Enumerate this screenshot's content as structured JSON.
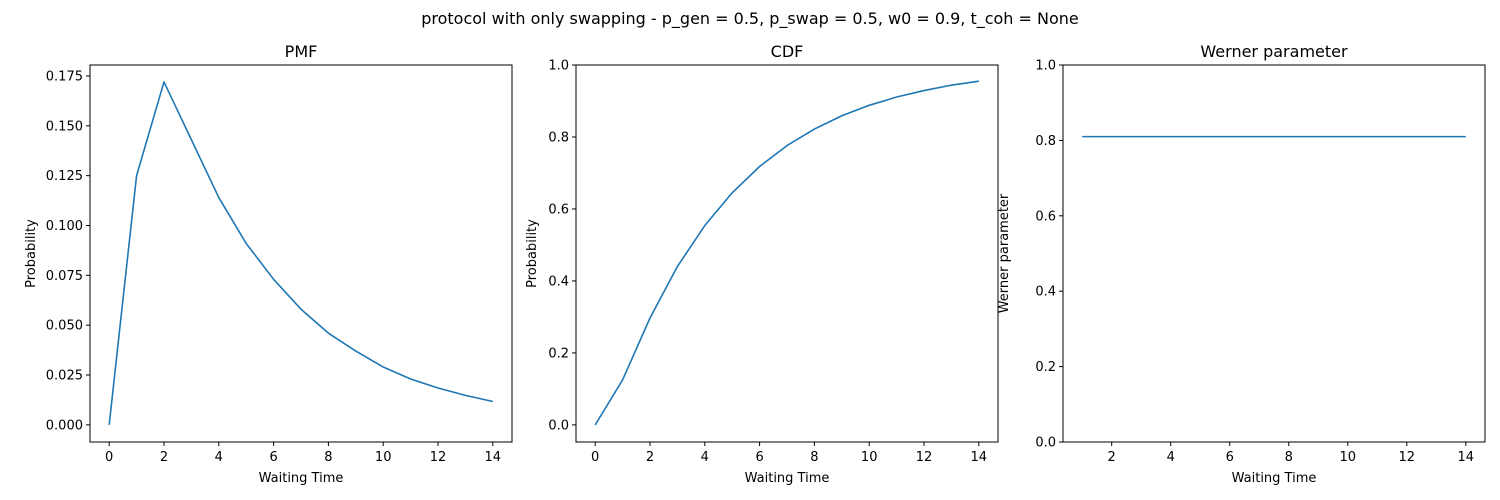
{
  "figure": {
    "suptitle": "protocol with only swapping - p_gen = 0.5, p_swap = 0.5, w0 = 0.9, t_coh = None"
  },
  "colors": {
    "line": "#1f77b4",
    "axes": "#000000"
  },
  "chart_data": [
    {
      "type": "line",
      "title": "PMF",
      "xlabel": "Waiting Time",
      "ylabel": "Probability",
      "xlim": [
        -0.7,
        14.7
      ],
      "ylim": [
        -0.0086,
        0.1805
      ],
      "xticks": [
        0,
        2,
        4,
        6,
        8,
        10,
        12,
        14
      ],
      "xtick_labels": [
        "0",
        "2",
        "4",
        "6",
        "8",
        "10",
        "12",
        "14"
      ],
      "yticks": [
        0,
        0.025,
        0.05,
        0.075,
        0.1,
        0.125,
        0.15,
        0.175
      ],
      "ytick_labels": [
        "0.000",
        "0.025",
        "0.050",
        "0.075",
        "0.100",
        "0.125",
        "0.150",
        "0.175"
      ],
      "grid": false,
      "series": [
        {
          "x": [
            0,
            1,
            2,
            3,
            4,
            5,
            6,
            7,
            8,
            9,
            10,
            11,
            12,
            13,
            14
          ],
          "y": [
            0.0,
            0.125,
            0.172,
            0.143,
            0.114,
            0.091,
            0.073,
            0.058,
            0.046,
            0.037,
            0.029,
            0.023,
            0.0185,
            0.0148,
            0.0117
          ]
        }
      ]
    },
    {
      "type": "line",
      "title": "CDF",
      "xlabel": "Waiting Time",
      "ylabel": "Probability",
      "xlim": [
        -0.7,
        14.7
      ],
      "ylim": [
        -0.0475,
        1.0
      ],
      "xticks": [
        0,
        2,
        4,
        6,
        8,
        10,
        12,
        14
      ],
      "xtick_labels": [
        "0",
        "2",
        "4",
        "6",
        "8",
        "10",
        "12",
        "14"
      ],
      "yticks": [
        0,
        0.2,
        0.4,
        0.6,
        0.8,
        1.0
      ],
      "ytick_labels": [
        "0.0",
        "0.2",
        "0.4",
        "0.6",
        "0.8",
        "1.0"
      ],
      "grid": false,
      "series": [
        {
          "x": [
            0,
            1,
            2,
            3,
            4,
            5,
            6,
            7,
            8,
            9,
            10,
            11,
            12,
            13,
            14
          ],
          "y": [
            0.0,
            0.125,
            0.297,
            0.44,
            0.554,
            0.645,
            0.718,
            0.776,
            0.822,
            0.859,
            0.888,
            0.911,
            0.929,
            0.944,
            0.955
          ]
        }
      ]
    },
    {
      "type": "line",
      "title": "Werner parameter",
      "xlabel": "Waiting Time",
      "ylabel": "Werner parameter",
      "xlim": [
        0.35,
        14.65
      ],
      "ylim": [
        0,
        1
      ],
      "xticks": [
        2,
        4,
        6,
        8,
        10,
        12,
        14
      ],
      "xtick_labels": [
        "2",
        "4",
        "6",
        "8",
        "10",
        "12",
        "14"
      ],
      "yticks": [
        0,
        0.2,
        0.4,
        0.6,
        0.8,
        1.0
      ],
      "ytick_labels": [
        "0.0",
        "0.2",
        "0.4",
        "0.6",
        "0.8",
        "1.0"
      ],
      "grid": false,
      "series": [
        {
          "x": [
            1,
            2,
            3,
            4,
            5,
            6,
            7,
            8,
            9,
            10,
            11,
            12,
            13,
            14
          ],
          "y": [
            0.81,
            0.81,
            0.81,
            0.81,
            0.81,
            0.81,
            0.81,
            0.81,
            0.81,
            0.81,
            0.81,
            0.81,
            0.81,
            0.81
          ]
        }
      ]
    }
  ]
}
